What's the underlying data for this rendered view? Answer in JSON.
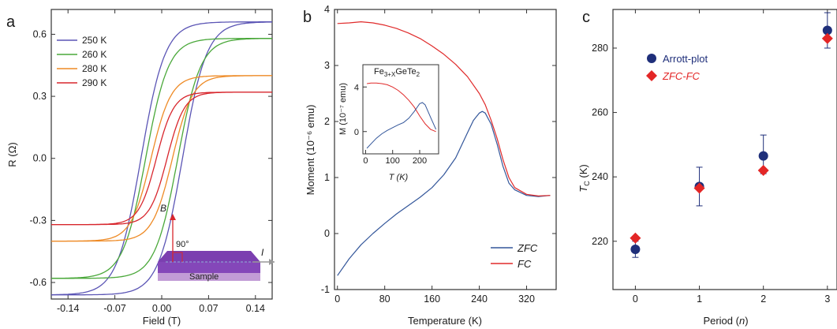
{
  "chart_data": [
    {
      "panel": "a",
      "type": "line",
      "xlabel": "Field (T)",
      "ylabel": "R (Ω)",
      "xlim": [
        -0.165,
        0.165
      ],
      "ylim": [
        -0.68,
        0.72
      ],
      "xticks": [
        "-0.14",
        "-0.07",
        "0.00",
        "0.07",
        "0.14"
      ],
      "xtick_values": [
        -0.14,
        -0.07,
        0.0,
        0.07,
        0.14
      ],
      "yticks": [
        "-0.6",
        "-0.3",
        "0.0",
        "0.3",
        "0.6"
      ],
      "ytick_values": [
        -0.6,
        -0.3,
        0.0,
        0.3,
        0.6
      ],
      "legend_position": "top-left",
      "series": [
        {
          "name": "250 K",
          "color": "#5b55b5",
          "amplitude": 0.66,
          "x0": 0.031,
          "width": 0.036
        },
        {
          "name": "260 K",
          "color": "#4aa83a",
          "amplitude": 0.58,
          "x0": 0.024,
          "width": 0.034
        },
        {
          "name": "280 K",
          "color": "#ee8a25",
          "amplitude": 0.4,
          "x0": 0.016,
          "width": 0.03
        },
        {
          "name": "290 K",
          "color": "#d8262d",
          "amplitude": 0.32,
          "x0": 0.008,
          "width": 0.026
        }
      ],
      "inset": {
        "field_label": "B",
        "angle_label": "90°",
        "current_label": "I",
        "sample_label": "Sample"
      }
    },
    {
      "panel": "b",
      "type": "line",
      "xlabel": "Temperature (K)",
      "ylabel": "Moment (10⁻⁶ emu)",
      "xlim": [
        -5,
        370
      ],
      "ylim": [
        -1,
        4
      ],
      "xticks": [
        "0",
        "80",
        "160",
        "240",
        "320"
      ],
      "xtick_values": [
        0,
        80,
        160,
        240,
        320
      ],
      "yticks": [
        "-1",
        "0",
        "1",
        "2",
        "3",
        "4"
      ],
      "ytick_values": [
        -1,
        0,
        1,
        2,
        3,
        4
      ],
      "legend_position": "bottom-right",
      "series": [
        {
          "name": "ZFC",
          "color": "#33569a",
          "x": [
            0,
            20,
            40,
            60,
            80,
            100,
            120,
            140,
            160,
            180,
            200,
            220,
            230,
            240,
            245,
            250,
            260,
            270,
            280,
            290,
            300,
            320,
            340,
            360
          ],
          "y": [
            -0.75,
            -0.45,
            -0.2,
            0.0,
            0.18,
            0.35,
            0.5,
            0.65,
            0.82,
            1.05,
            1.35,
            1.8,
            2.02,
            2.15,
            2.18,
            2.15,
            1.95,
            1.6,
            1.2,
            0.9,
            0.78,
            0.68,
            0.66,
            0.68
          ]
        },
        {
          "name": "FC",
          "color": "#e02a2a",
          "x": [
            0,
            20,
            40,
            60,
            80,
            100,
            120,
            140,
            160,
            180,
            200,
            220,
            240,
            250,
            260,
            270,
            280,
            290,
            300,
            320,
            340,
            360
          ],
          "y": [
            3.75,
            3.76,
            3.78,
            3.76,
            3.72,
            3.66,
            3.58,
            3.48,
            3.35,
            3.2,
            3.02,
            2.8,
            2.5,
            2.3,
            2.02,
            1.7,
            1.32,
            1.0,
            0.82,
            0.7,
            0.67,
            0.68
          ]
        }
      ],
      "inset": {
        "title_base": "Fe",
        "title_sub": "3+X",
        "title_rest": "GeTe",
        "title_sub2": "2",
        "xlabel": "T (K)",
        "ylabel": "M (10⁻⁷ emu)",
        "xlim": [
          -10,
          270
        ],
        "ylim": [
          -2,
          6
        ],
        "xticks": [
          "0",
          "100",
          "200"
        ],
        "xtick_values": [
          0,
          100,
          200
        ],
        "yticks": [
          "0",
          "4"
        ],
        "ytick_values": [
          0,
          4
        ],
        "series": [
          {
            "name": "FC",
            "color": "#e02a2a",
            "x": [
              5,
              20,
              40,
              60,
              80,
              100,
              120,
              140,
              160,
              180,
              200,
              220,
              240,
              260
            ],
            "y": [
              4.3,
              4.35,
              4.35,
              4.3,
              4.2,
              4.0,
              3.7,
              3.3,
              2.8,
              2.2,
              1.4,
              0.7,
              0.2,
              0.0
            ]
          },
          {
            "name": "ZFC",
            "color": "#33569a",
            "x": [
              5,
              20,
              40,
              60,
              80,
              100,
              120,
              140,
              160,
              180,
              200,
              210,
              220,
              240,
              260
            ],
            "y": [
              -1.5,
              -1.1,
              -0.6,
              -0.2,
              0.1,
              0.35,
              0.6,
              0.8,
              1.2,
              1.8,
              2.5,
              2.6,
              2.4,
              1.3,
              0.2
            ]
          }
        ]
      }
    },
    {
      "panel": "c",
      "type": "scatter",
      "xlabel": "Period (n)",
      "ylabel": "T_C (K)",
      "xlim": [
        -0.35,
        3.15
      ],
      "ylim": [
        205,
        292
      ],
      "xticks": [
        "0",
        "1",
        "2",
        "3"
      ],
      "xtick_values": [
        0,
        1,
        2,
        3
      ],
      "yticks": [
        "220",
        "240",
        "260",
        "280"
      ],
      "ytick_values": [
        220,
        240,
        260,
        280
      ],
      "legend_position": "top-left",
      "series": [
        {
          "name": "Arrott-plot",
          "color": "#1f2f7a",
          "marker": "circle",
          "x": [
            0,
            1,
            2,
            3
          ],
          "y": [
            217.5,
            237,
            246.5,
            285.5
          ],
          "err_low": [
            2.5,
            6,
            5.5,
            5.5
          ],
          "err_high": [
            2.5,
            6,
            6.5,
            5.5
          ]
        },
        {
          "name": "ZFC-FC",
          "color": "#e32626",
          "marker": "diamond",
          "x": [
            0,
            1,
            2,
            3
          ],
          "y": [
            221,
            236.5,
            242,
            283
          ]
        }
      ]
    }
  ]
}
